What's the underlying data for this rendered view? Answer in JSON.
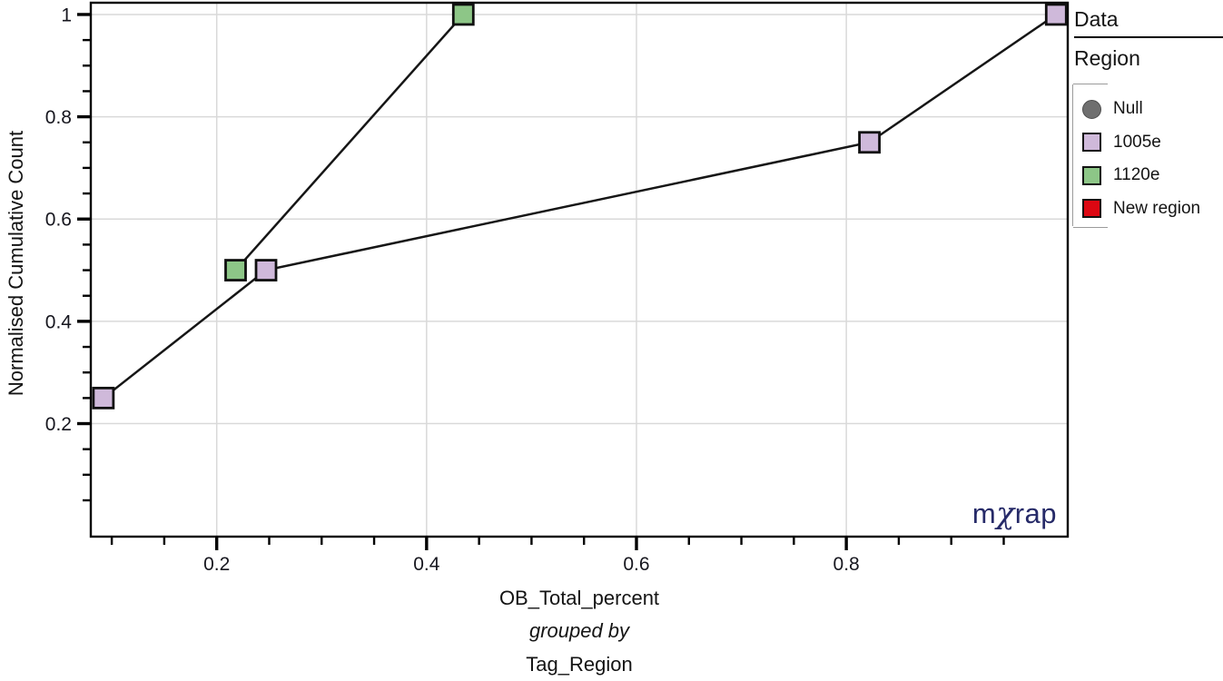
{
  "legend": {
    "title": "Data",
    "group_title": "Region",
    "items": [
      {
        "label": "Null",
        "shape": "circle",
        "color": "#6f6f6f",
        "border": "#4d4d4d"
      },
      {
        "label": "1005e",
        "shape": "square",
        "color": "#cfb9da",
        "border": "#111111"
      },
      {
        "label": "1120e",
        "shape": "square",
        "color": "#8dc687",
        "border": "#111111"
      },
      {
        "label": "New region",
        "shape": "square",
        "color": "#dc0712",
        "border": "#111111"
      }
    ]
  },
  "branding": {
    "logo_m": "m",
    "logo_chi": "χ",
    "logo_rap": "rap",
    "logo_color": "#262a68"
  },
  "chart_data": {
    "type": "line",
    "title": "",
    "ylabel": "Normalised Cumulative Count",
    "xlabel": "OB_Total_percent",
    "xlabel_sub": "grouped by",
    "xlabel_group": "Tag_Region",
    "xlim": [
      0.08,
      1.011
    ],
    "ylim": [
      -0.021,
      1.023
    ],
    "x_major_ticks": [
      0.2,
      0.4,
      0.6,
      0.8
    ],
    "x_tick_labels": [
      "0.2",
      "0.4",
      "0.6",
      "0.8"
    ],
    "y_major_ticks": [
      0.2,
      0.4,
      0.6,
      0.8,
      1
    ],
    "y_tick_labels": [
      "0.2",
      "0.4",
      "0.6",
      "0.8",
      "1"
    ],
    "minor_tick_step": 0.05,
    "x_minor_range": [
      0.1,
      0.95
    ],
    "y_minor_range": [
      0.05,
      0.95
    ],
    "x_grid": [
      0.2,
      0.4,
      0.6,
      0.8
    ],
    "y_grid": [
      0.2,
      0.4,
      0.6,
      0.8,
      1
    ],
    "grid": true,
    "legend_position": "right",
    "grid_color": "#d9d9d9",
    "line_color": "#161616",
    "series": [
      {
        "name": "1005e",
        "color": "#cfb9da",
        "marker": "square",
        "points": [
          [
            0.092,
            0.25
          ],
          [
            0.247,
            0.5
          ],
          [
            0.822,
            0.75
          ],
          [
            1.0,
            1.0
          ]
        ]
      },
      {
        "name": "1120e",
        "color": "#8dc687",
        "marker": "square",
        "points": [
          [
            0.218,
            0.5
          ],
          [
            0.435,
            1.0
          ]
        ]
      }
    ]
  }
}
